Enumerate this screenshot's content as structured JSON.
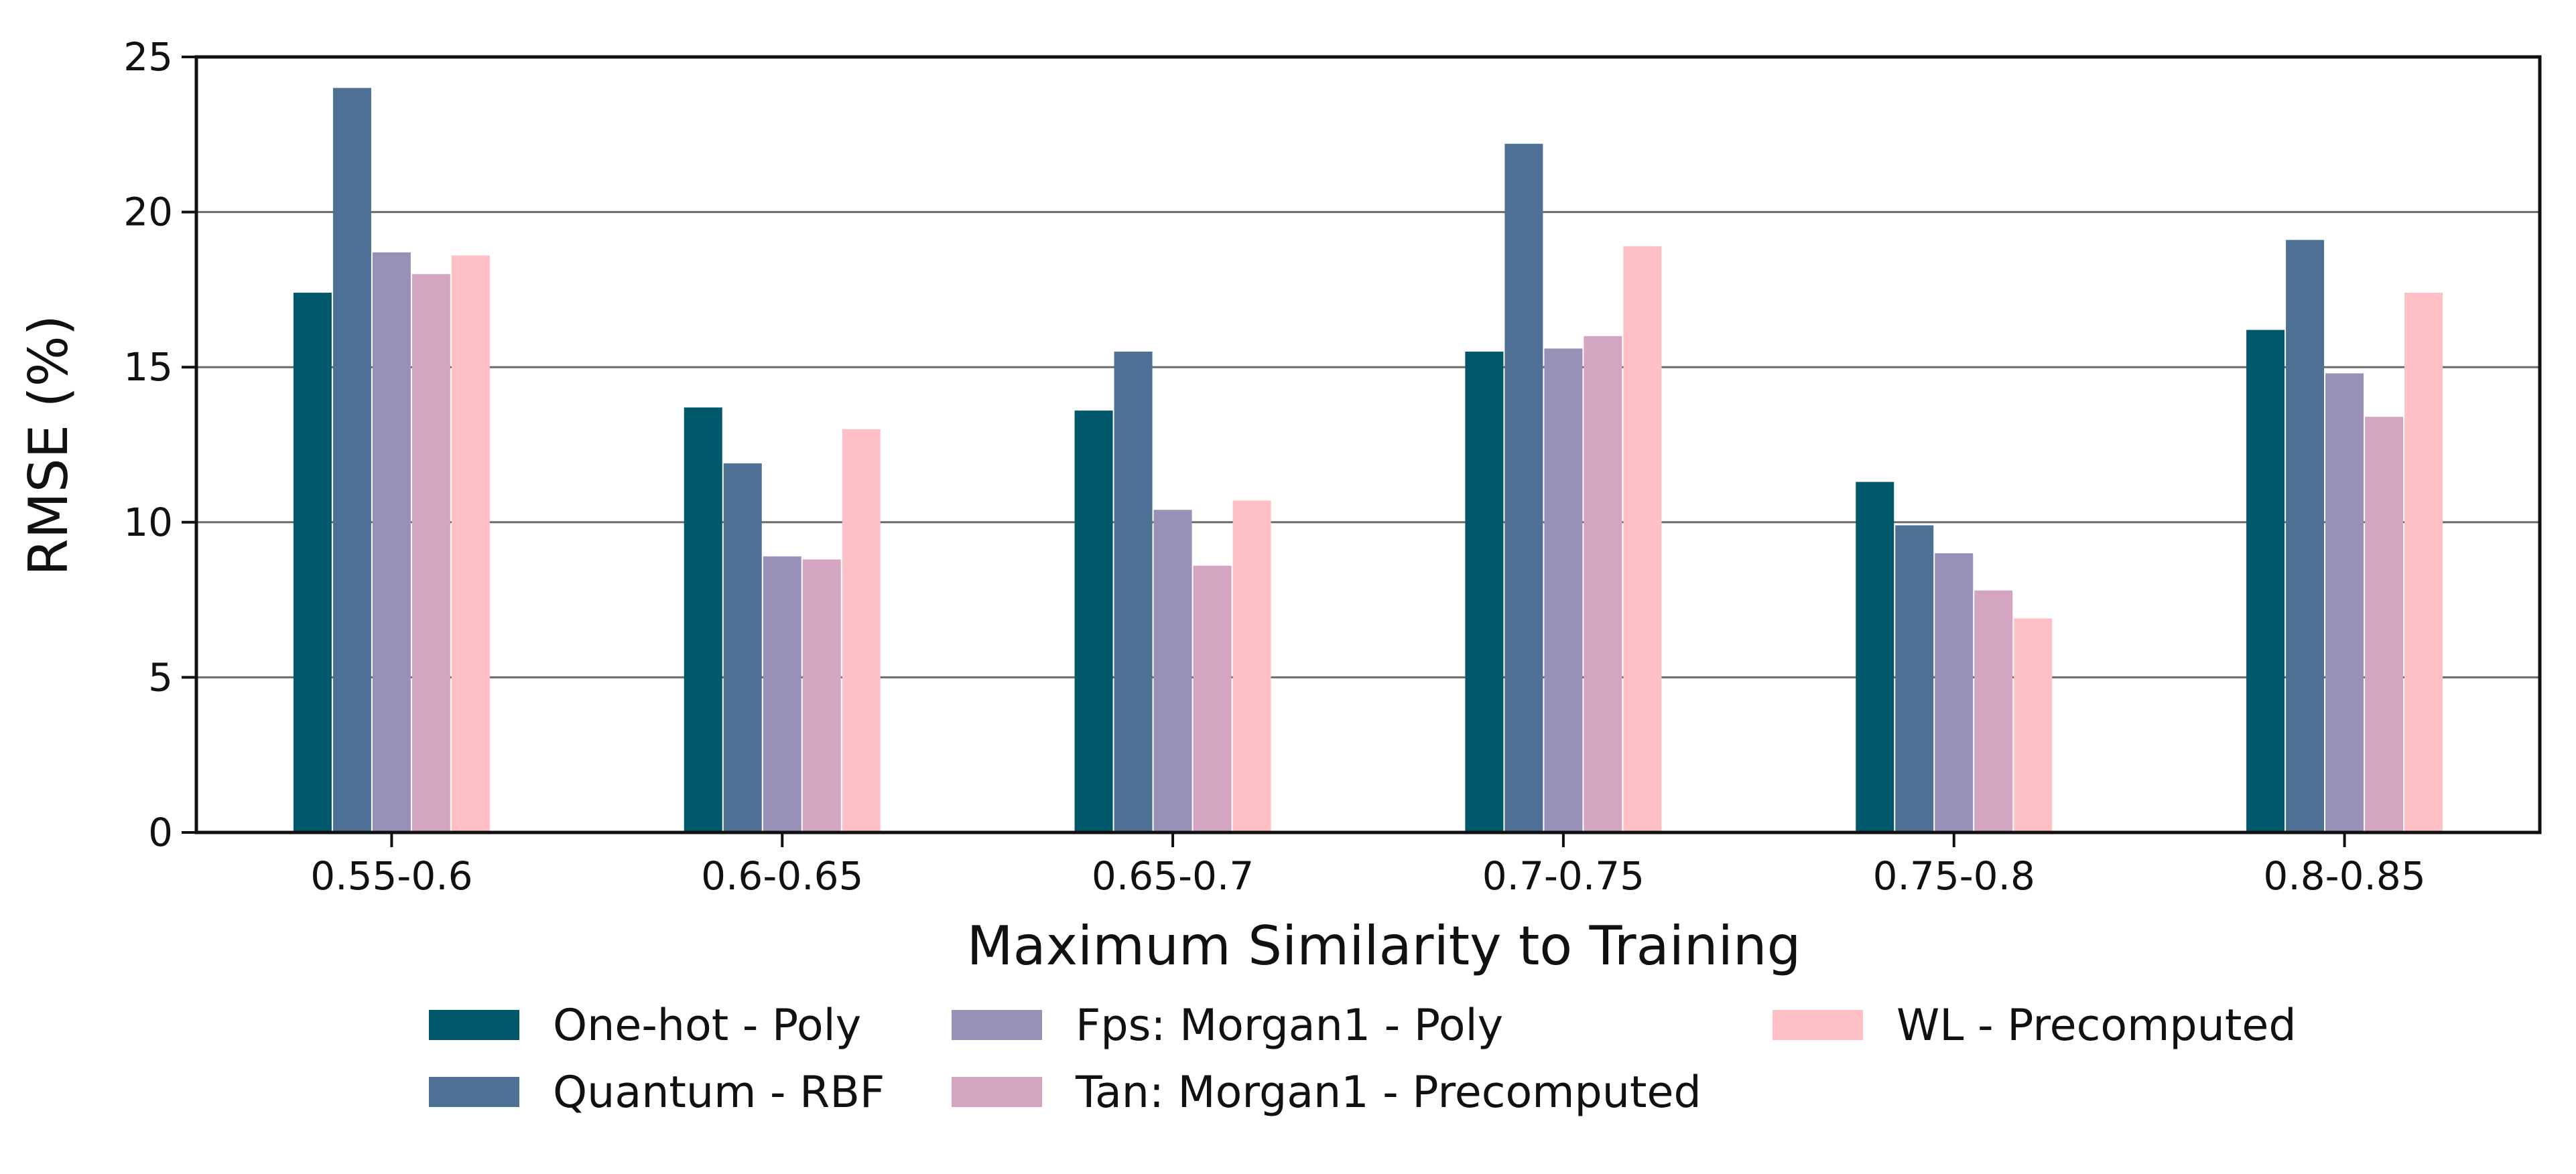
{
  "chart_data": {
    "type": "bar",
    "title": "",
    "xlabel": "Maximum Similarity to Training",
    "ylabel": "RMSE (%)",
    "ylim": [
      0,
      25
    ],
    "yticks": [
      0,
      5,
      10,
      15,
      20,
      25
    ],
    "grid": "horizontal",
    "legend_position": "bottom",
    "categories": [
      "0.55-0.6",
      "0.6-0.65",
      "0.65-0.7",
      "0.7-0.75",
      "0.75-0.8",
      "0.8-0.85"
    ],
    "series": [
      {
        "name": "One-hot - Poly",
        "color": "#02586b",
        "values": [
          17.4,
          13.7,
          13.6,
          15.5,
          11.3,
          16.2
        ]
      },
      {
        "name": "Quantum - RBF",
        "color": "#4e7094",
        "values": [
          24.0,
          11.9,
          15.5,
          22.2,
          9.9,
          19.1
        ]
      },
      {
        "name": "Fps: Morgan1 - Poly",
        "color": "#9890b7",
        "values": [
          18.7,
          8.9,
          10.4,
          15.6,
          9.0,
          14.8
        ]
      },
      {
        "name": "Tan: Morgan1 - Precomputed",
        "color": "#d4a5c0",
        "values": [
          18.0,
          8.8,
          8.6,
          16.0,
          7.8,
          13.4
        ]
      },
      {
        "name": "WL - Precomputed",
        "color": "#ffc0c5",
        "values": [
          18.6,
          13.0,
          10.7,
          18.9,
          6.9,
          17.4
        ]
      }
    ]
  }
}
